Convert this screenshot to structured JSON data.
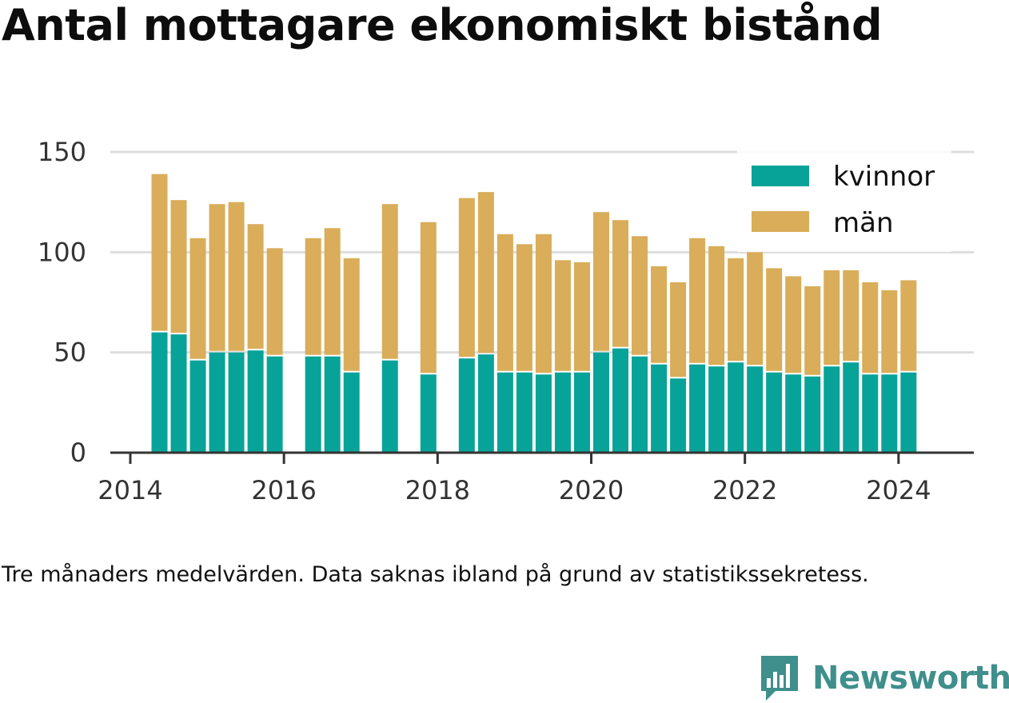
{
  "title": "Antal mottagare ekonomiskt bistånd",
  "note": "Tre månaders medelvärden. Data saknas ibland på grund av statistikssekretess.",
  "brand": {
    "name": "Newsworthy",
    "icon": "newsworthy-logo-icon"
  },
  "colors": {
    "kvinnor": "#08a398",
    "man": "#d9ad59",
    "axis": "#333333",
    "grid": "#dddddd",
    "brand": "#3f8f8c"
  },
  "chart_data": {
    "type": "bar",
    "stacked": true,
    "x_axis": {
      "ticks": [
        "2014",
        "2016",
        "2018",
        "2020",
        "2022",
        "2024"
      ],
      "tick_values": [
        2014,
        2016,
        2018,
        2020,
        2022,
        2024
      ],
      "range": [
        2013.74,
        2024.98
      ]
    },
    "y_axis": {
      "ticks": [
        "0",
        "50",
        "100",
        "150"
      ],
      "tick_values": [
        0,
        50,
        100,
        150
      ],
      "range": [
        0,
        150
      ]
    },
    "grid": true,
    "legend": {
      "placement": "top-right",
      "entries": [
        "kvinnor",
        "män"
      ]
    },
    "x": [
      2014.38,
      2014.63,
      2014.88,
      2015.13,
      2015.38,
      2015.63,
      2015.88,
      2016.38,
      2016.63,
      2016.88,
      2017.38,
      2017.88,
      2018.38,
      2018.63,
      2018.88,
      2019.13,
      2019.38,
      2019.63,
      2019.88,
      2020.13,
      2020.38,
      2020.63,
      2020.88,
      2021.13,
      2021.38,
      2021.63,
      2021.88,
      2022.13,
      2022.38,
      2022.63,
      2022.88,
      2023.13,
      2023.38,
      2023.63,
      2023.88,
      2024.13
    ],
    "series": [
      {
        "name": "kvinnor",
        "values": [
          60,
          59,
          46,
          50,
          50,
          51,
          48,
          48,
          48,
          40,
          46,
          39,
          47,
          49,
          40,
          40,
          39,
          40,
          40,
          50,
          52,
          48,
          44,
          37,
          44,
          43,
          45,
          43,
          40,
          39,
          38,
          43,
          45,
          39,
          39,
          40
        ]
      },
      {
        "name": "män",
        "values": [
          79,
          67,
          61,
          74,
          75,
          63,
          54,
          59,
          64,
          57,
          78,
          76,
          80,
          81,
          69,
          64,
          70,
          56,
          55,
          70,
          64,
          60,
          49,
          48,
          63,
          60,
          52,
          57,
          52,
          49,
          45,
          48,
          46,
          46,
          42,
          46
        ]
      }
    ]
  }
}
